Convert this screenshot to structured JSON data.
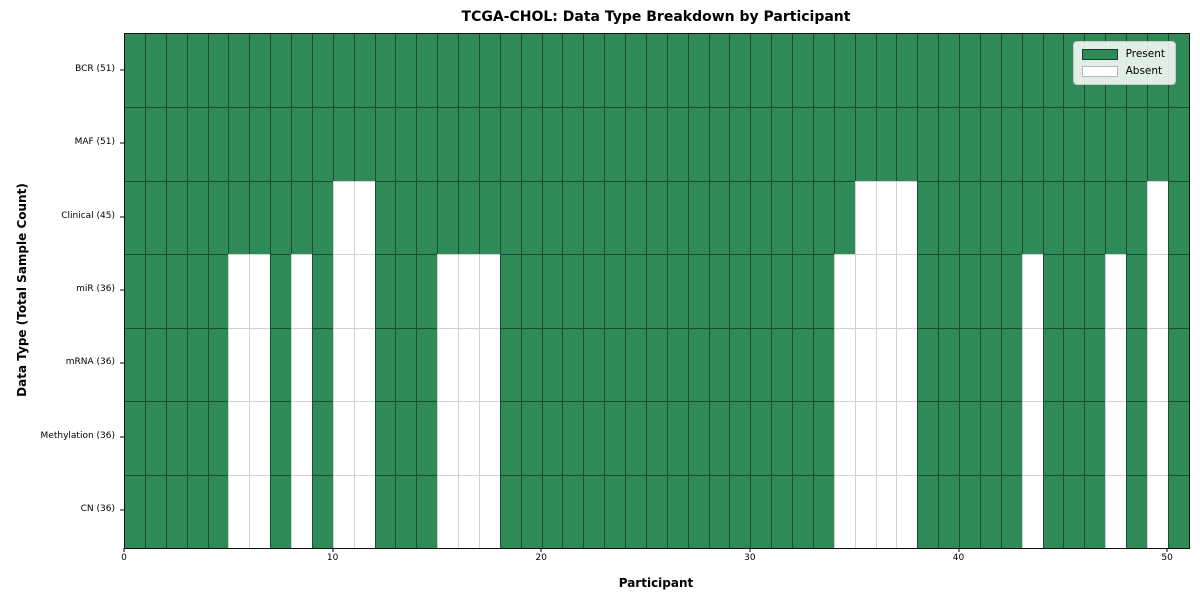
{
  "chart_data": {
    "type": "heatmap",
    "title": "TCGA-CHOL: Data Type Breakdown by Participant",
    "xlabel": "Participant",
    "ylabel": "Data Type (Total Sample Count)",
    "x_ticks": [
      0,
      10,
      20,
      30,
      40,
      50
    ],
    "x_range": [
      0,
      51
    ],
    "n_participants": 51,
    "grid": "cell-edges",
    "legend_position": "upper-right-inside",
    "colors": {
      "present": "#2E8B57",
      "absent": "#FFFFFF"
    },
    "legend": [
      {
        "label": "Present",
        "value": "present"
      },
      {
        "label": "Absent",
        "value": "absent"
      }
    ],
    "rows": [
      {
        "label": "BCR (51)",
        "total_samples": 51,
        "absent_participants": []
      },
      {
        "label": "MAF (51)",
        "total_samples": 51,
        "absent_participants": []
      },
      {
        "label": "Clinical (45)",
        "total_samples": 45,
        "absent_participants": [
          10,
          11,
          35,
          36,
          37,
          49
        ]
      },
      {
        "label": "miR (36)",
        "total_samples": 36,
        "absent_participants": [
          5,
          6,
          8,
          10,
          11,
          15,
          16,
          17,
          34,
          35,
          36,
          37,
          43,
          47,
          49
        ]
      },
      {
        "label": "mRNA (36)",
        "total_samples": 36,
        "absent_participants": [
          5,
          6,
          8,
          10,
          11,
          15,
          16,
          17,
          34,
          35,
          36,
          37,
          43,
          47,
          49
        ]
      },
      {
        "label": "Methylation (36)",
        "total_samples": 36,
        "absent_participants": [
          5,
          6,
          8,
          10,
          11,
          15,
          16,
          17,
          34,
          35,
          36,
          37,
          43,
          47,
          49
        ]
      },
      {
        "label": "CN (36)",
        "total_samples": 36,
        "absent_participants": [
          5,
          6,
          8,
          10,
          11,
          15,
          16,
          17,
          34,
          35,
          36,
          37,
          43,
          47,
          49
        ]
      }
    ]
  }
}
